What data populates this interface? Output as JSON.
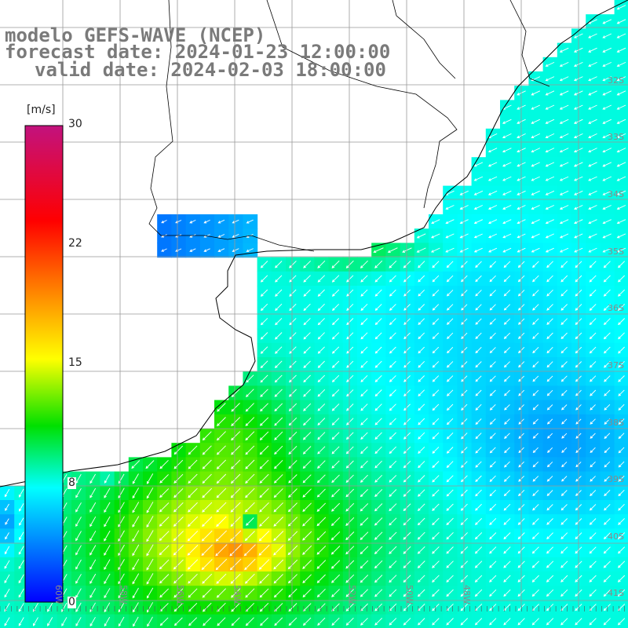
{
  "title": {
    "line1": "modelo GEFS-WAVE (NCEP)",
    "line2": "forecast date: 2024-01-23 12:00:00",
    "line3": "valid date: 2024-02-03 18:00:00"
  },
  "colorbar": {
    "unit": "[m/s]",
    "ticks": [
      "30",
      "22",
      "15",
      "8",
      "0"
    ],
    "colors": [
      "#c2127e",
      "#ff0000",
      "#ffa000",
      "#ffff00",
      "#00e000",
      "#00ffff",
      "#0000ff"
    ]
  },
  "map": {
    "land_color": "#ffffff",
    "grid_color": "#999999",
    "coast_color": "#000000",
    "arrow_color": "#ffffff"
  },
  "labels": {
    "lat": [
      "32S",
      "33S",
      "34S",
      "35S",
      "36S",
      "37S",
      "38S",
      "39S",
      "40S",
      "41S"
    ],
    "lon": [
      "60W",
      "58W",
      "56W",
      "54W",
      "52W",
      "50W",
      "48W"
    ]
  },
  "chart_data": {
    "type": "heatmap",
    "field": "wind speed",
    "unit": "[m/s]",
    "color_range": [
      0,
      30
    ],
    "wind_direction": "from north-east"
  }
}
